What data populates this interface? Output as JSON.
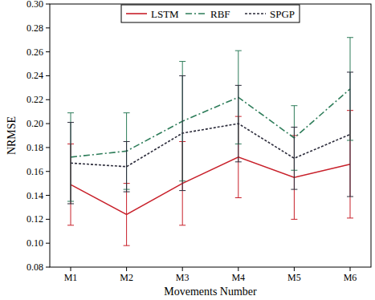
{
  "chart_data": {
    "type": "line",
    "x_label": "Movements Number",
    "y_label": "NRMSE",
    "categories": [
      "M1",
      "M2",
      "M3",
      "M4",
      "M5",
      "M6"
    ],
    "series": [
      {
        "name": "LSTM",
        "color": "#c8202a",
        "line_style": "solid",
        "values": [
          0.149,
          0.124,
          0.15,
          0.172,
          0.155,
          0.166
        ],
        "errors": [
          0.034,
          0.026,
          0.035,
          0.034,
          0.035,
          0.045
        ]
      },
      {
        "name": "RBF",
        "color": "#2e7d5a",
        "line_style": "dash-dot",
        "values": [
          0.172,
          0.177,
          0.202,
          0.222,
          0.188,
          0.229
        ],
        "errors": [
          0.037,
          0.032,
          0.05,
          0.039,
          0.027,
          0.043
        ]
      },
      {
        "name": "SPGP",
        "color": "#2b2b3a",
        "line_style": "dotted",
        "values": [
          0.167,
          0.164,
          0.192,
          0.2,
          0.171,
          0.191
        ],
        "errors": [
          0.034,
          0.021,
          0.048,
          0.032,
          0.026,
          0.052
        ]
      }
    ],
    "ylim": [
      0.08,
      0.3
    ],
    "yticks": [
      0.08,
      {
        "value": 0.1,
        "label": "0.10"
      },
      0.12,
      0.14,
      0.16,
      0.18,
      {
        "value": 0.2,
        "label": "0.20"
      },
      0.22,
      0.24,
      0.26,
      0.28,
      {
        "value": 0.3,
        "label": "0.30"
      }
    ],
    "grid": false,
    "legend": "top"
  }
}
